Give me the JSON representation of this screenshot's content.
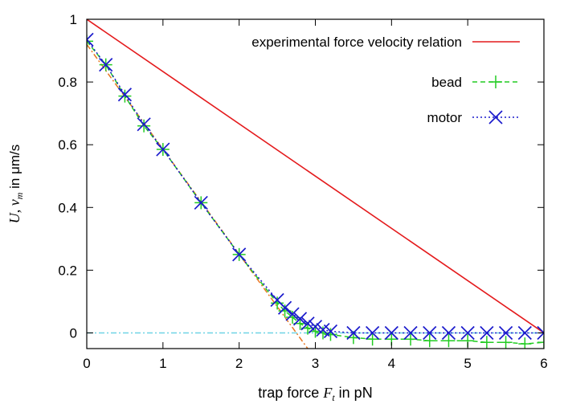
{
  "chart_data": {
    "type": "line",
    "xlabel": "trap force F_t in pN",
    "ylabel": "U, v_m in μm/s",
    "xlim": [
      0,
      6
    ],
    "ylim": [
      -0.05,
      1
    ],
    "xticks": [
      "0",
      "1",
      "2",
      "3",
      "4",
      "5",
      "6"
    ],
    "yticks": [
      "0",
      "0.2",
      "0.4",
      "0.6",
      "0.8",
      "1"
    ],
    "grid": false,
    "legend_position": "top-right",
    "series": [
      {
        "name": "experimental force velocity relation",
        "style": "solid",
        "color": "#e41a1c",
        "x": [
          0,
          6
        ],
        "y": [
          1.0,
          0.0
        ]
      },
      {
        "name": "bead",
        "style": "dashed",
        "marker": "plus",
        "color": "#22cc22",
        "x": [
          0,
          0.25,
          0.5,
          0.75,
          1.0,
          1.5,
          2.0,
          2.5,
          2.6,
          2.7,
          2.8,
          2.9,
          3.0,
          3.1,
          3.2,
          3.5,
          3.75,
          4.0,
          4.25,
          4.5,
          4.75,
          5.0,
          5.25,
          5.5,
          5.75,
          6.0
        ],
        "y": [
          0.93,
          0.855,
          0.755,
          0.66,
          0.585,
          0.415,
          0.25,
          0.095,
          0.07,
          0.05,
          0.03,
          0.015,
          0.005,
          0.0,
          -0.005,
          -0.015,
          -0.02,
          -0.02,
          -0.02,
          -0.025,
          -0.025,
          -0.025,
          -0.03,
          -0.03,
          -0.035,
          -0.03
        ]
      },
      {
        "name": "motor",
        "style": "dotted",
        "marker": "cross",
        "color": "#1a1acc",
        "x": [
          0,
          0.25,
          0.5,
          0.75,
          1.0,
          1.5,
          2.0,
          2.5,
          2.6,
          2.7,
          2.8,
          2.9,
          3.0,
          3.1,
          3.2,
          3.5,
          3.75,
          4.0,
          4.25,
          4.5,
          4.75,
          5.0,
          5.25,
          5.5,
          5.75,
          6.0
        ],
        "y": [
          0.935,
          0.855,
          0.76,
          0.665,
          0.585,
          0.415,
          0.25,
          0.105,
          0.08,
          0.06,
          0.045,
          0.03,
          0.02,
          0.01,
          0.005,
          0.0,
          0.0,
          0.0,
          0.0,
          0.0,
          0.0,
          0.0,
          0.0,
          0.0,
          0.0,
          0.0
        ]
      },
      {
        "style": "dash-dot",
        "color": "#e87722",
        "x": [
          0,
          2.9
        ],
        "y": [
          0.92,
          -0.05
        ]
      },
      {
        "style": "dash-dot",
        "color": "#6fd3e6",
        "x": [
          0,
          6
        ],
        "y": [
          0,
          0
        ]
      }
    ]
  }
}
